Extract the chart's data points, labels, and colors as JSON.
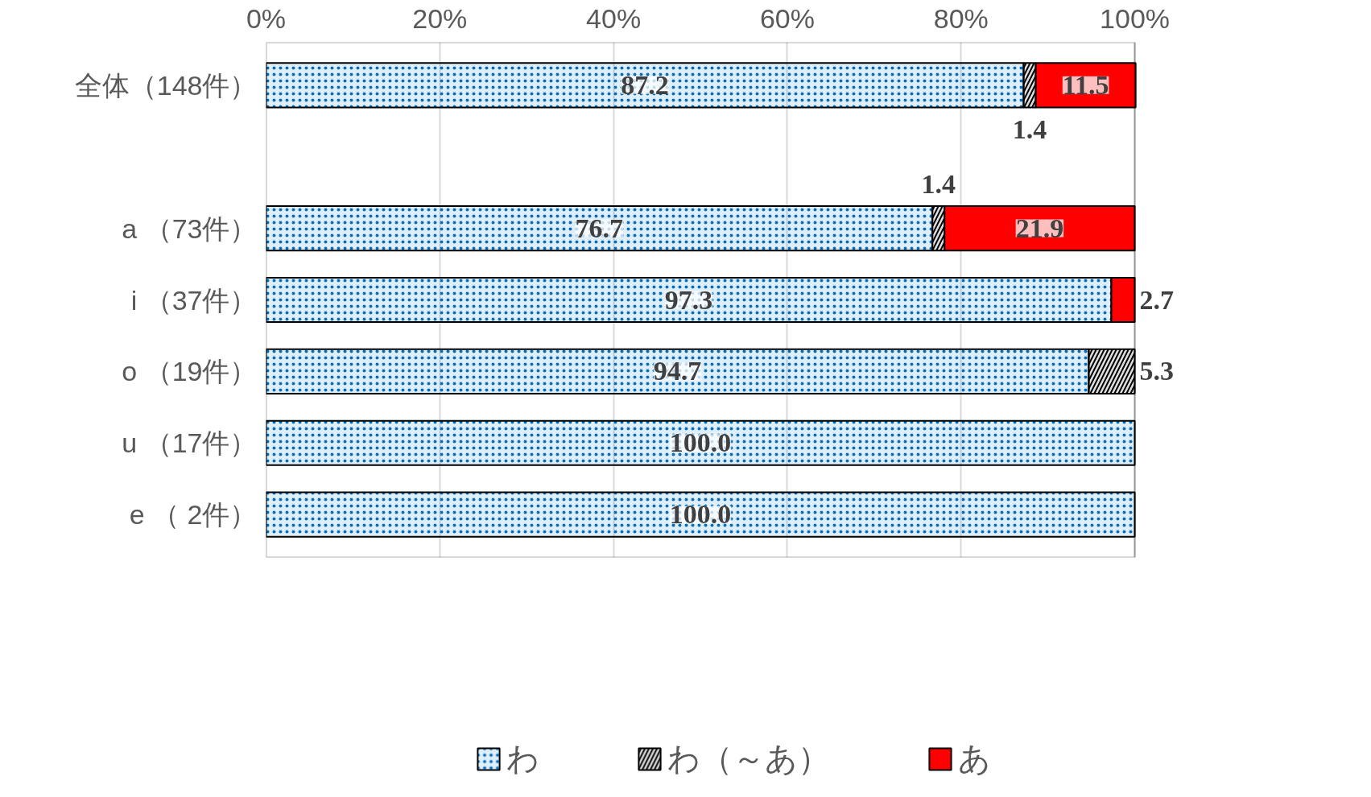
{
  "chart_data": {
    "type": "bar",
    "orientation": "horizontal",
    "stacked": true,
    "categories": [
      "全体（148件）",
      null,
      "a （73件）",
      "i （37件）",
      "o （19件）",
      "u （17件）",
      "e （ 2件）"
    ],
    "series": [
      {
        "name": "わ",
        "color": "#0070c0",
        "values": [
          87.2,
          null,
          76.7,
          97.3,
          94.7,
          100.0,
          100.0
        ],
        "value_labels": [
          "87.2",
          null,
          "76.7",
          "97.3",
          "94.7",
          "100.0",
          "100.0"
        ]
      },
      {
        "name": "わ（～あ）",
        "color": "#000000",
        "values": [
          1.4,
          null,
          1.4,
          null,
          5.3,
          null,
          null
        ],
        "value_labels": [
          "1.4",
          null,
          "1.4",
          null,
          "5.3",
          null,
          null
        ]
      },
      {
        "name": "あ",
        "color": "#ff0000",
        "values": [
          11.5,
          null,
          21.9,
          2.7,
          null,
          null,
          null
        ],
        "value_labels": [
          "11.5",
          null,
          "21.9",
          "2.7",
          null,
          null,
          null
        ]
      }
    ],
    "xlim": [
      0,
      100
    ],
    "xticks": [
      {
        "value": 0,
        "label": "0%"
      },
      {
        "value": 20,
        "label": "20%"
      },
      {
        "value": 40,
        "label": "40%"
      },
      {
        "value": 60,
        "label": "60%"
      },
      {
        "value": 80,
        "label": "80%"
      },
      {
        "value": 100,
        "label": "100%"
      }
    ],
    "grid": "x",
    "legend": "bottom"
  }
}
